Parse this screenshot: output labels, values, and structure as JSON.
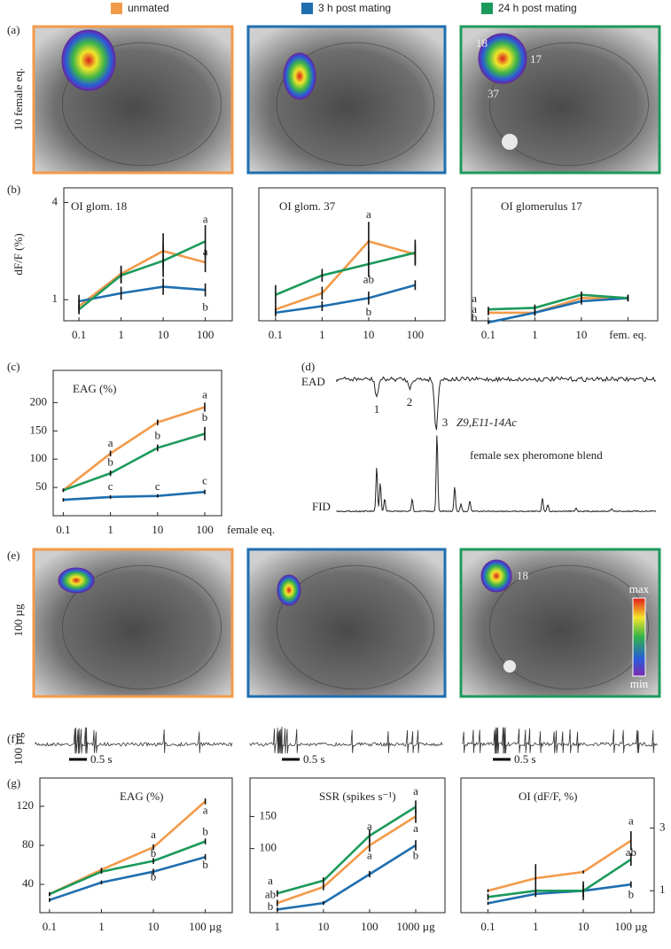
{
  "legend": [
    {
      "name": "unmated",
      "color": "#f39a4a"
    },
    {
      "name": "3 h post mating",
      "color": "#1f6fb0"
    },
    {
      "name": "24 h post mating",
      "color": "#1c9a5c"
    }
  ],
  "row_a": {
    "panel": "(a)",
    "ylabel": "10 female eq.",
    "image_labels": [
      "18",
      "17",
      "37"
    ]
  },
  "chart_data": [
    {
      "type": "line",
      "panel": "(b)",
      "title": "OI glom. 18",
      "ylabel": "dF/F (%)",
      "categories": [
        "0.1",
        "1",
        "10",
        "100"
      ],
      "ylim": [
        0.35,
        4.45
      ],
      "yticks": [
        1,
        4
      ],
      "series": [
        {
          "color": "#f39a4a",
          "values": [
            0.8,
            1.8,
            2.5,
            2.15
          ],
          "errors": [
            0.2,
            0.25,
            0.55,
            0.3
          ]
        },
        {
          "color": "#1f6fb0",
          "values": [
            0.95,
            1.2,
            1.4,
            1.3
          ],
          "errors": [
            0.2,
            0.2,
            0.25,
            0.2
          ]
        },
        {
          "color": "#1c9a5c",
          "values": [
            0.7,
            1.75,
            2.2,
            2.8
          ],
          "errors": [
            0.15,
            0.25,
            0.5,
            0.5
          ]
        }
      ],
      "annotations": [
        {
          "text": "a",
          "x": 3,
          "y": 3.45
        },
        {
          "text": "a",
          "x": 3,
          "y": 2.45
        },
        {
          "text": "b",
          "x": 3,
          "y": 0.75
        }
      ]
    },
    {
      "type": "line",
      "title": "OI glom. 37",
      "categories": [
        "0.1",
        "1",
        "10",
        "100"
      ],
      "ylim": [
        0.35,
        4.45
      ],
      "series": [
        {
          "color": "#f39a4a",
          "values": [
            0.7,
            1.2,
            2.8,
            2.4
          ],
          "errors": [
            0.15,
            0.2,
            0.6,
            0.3
          ]
        },
        {
          "color": "#1f6fb0",
          "values": [
            0.6,
            0.8,
            1.05,
            1.45
          ],
          "errors": [
            0.12,
            0.15,
            0.2,
            0.15
          ]
        },
        {
          "color": "#1c9a5c",
          "values": [
            1.15,
            1.75,
            2.1,
            2.45
          ],
          "errors": [
            0.3,
            0.2,
            0.4,
            0.4
          ]
        }
      ],
      "annotations": [
        {
          "text": "a",
          "x": 2,
          "y": 3.6
        },
        {
          "text": "ab",
          "x": 2,
          "y": 1.6
        },
        {
          "text": "b",
          "x": 2,
          "y": 0.6
        }
      ]
    },
    {
      "type": "line",
      "title": "OI glomerulus 17",
      "categories": [
        "0.1",
        "1",
        "10",
        "fem. eq."
      ],
      "ylim": [
        0.35,
        4.45
      ],
      "series": [
        {
          "color": "#f39a4a",
          "values": [
            0.6,
            0.6,
            1.05,
            1.05
          ],
          "errors": [
            0.08,
            0.1,
            0.1,
            0.1
          ]
        },
        {
          "color": "#1f6fb0",
          "values": [
            0.3,
            0.6,
            0.95,
            1.05
          ],
          "errors": [
            0.05,
            0.1,
            0.1,
            0.1
          ]
        },
        {
          "color": "#1c9a5c",
          "values": [
            0.7,
            0.75,
            1.15,
            1.05
          ],
          "errors": [
            0.08,
            0.1,
            0.1,
            0.1
          ]
        }
      ],
      "annotations": [
        {
          "text": "a",
          "x": -0.3,
          "y": 1.0
        },
        {
          "text": "a",
          "x": -0.3,
          "y": 0.68
        },
        {
          "text": "b",
          "x": -0.3,
          "y": 0.42
        }
      ]
    },
    {
      "type": "line",
      "panel": "(c)",
      "title": "EAG (%)",
      "xlabel": "female eq.",
      "categories": [
        "0.1",
        "1",
        "10",
        "100"
      ],
      "ylim": [
        0,
        257
      ],
      "yticks": [
        50,
        100,
        150,
        200
      ],
      "series": [
        {
          "color": "#f39a4a",
          "values": [
            45,
            110,
            165,
            192
          ],
          "errors": [
            3,
            5,
            5,
            8
          ]
        },
        {
          "color": "#1f6fb0",
          "values": [
            28,
            33,
            35,
            42
          ],
          "errors": [
            3,
            3,
            3,
            4
          ]
        },
        {
          "color": "#1c9a5c",
          "values": [
            45,
            75,
            120,
            145
          ],
          "errors": [
            3,
            5,
            6,
            12
          ]
        }
      ],
      "annotations": [
        {
          "text": "a",
          "x": 1,
          "y": 127
        },
        {
          "text": "b",
          "x": 1,
          "y": 93
        },
        {
          "text": "c",
          "x": 1,
          "y": 50
        },
        {
          "text": "b",
          "x": 2,
          "y": 140
        },
        {
          "text": "c",
          "x": 2,
          "y": 50
        },
        {
          "text": "a",
          "x": 3,
          "y": 212
        },
        {
          "text": "b",
          "x": 3,
          "y": 172
        },
        {
          "text": "c",
          "x": 3,
          "y": 60
        }
      ]
    },
    {
      "type": "line",
      "panel": "(g)",
      "title": "EAG (%)",
      "categories": [
        "0.1",
        "1",
        "10",
        "100 µg"
      ],
      "ylim": [
        11,
        149
      ],
      "yticks": [
        40,
        80,
        120
      ],
      "series": [
        {
          "color": "#f39a4a",
          "values": [
            30,
            55,
            78,
            125
          ],
          "errors": [
            2,
            2,
            3,
            3
          ]
        },
        {
          "color": "#1f6fb0",
          "values": [
            24,
            42,
            53,
            68
          ],
          "errors": [
            2,
            2,
            3,
            3
          ]
        },
        {
          "color": "#1c9a5c",
          "values": [
            30,
            53,
            64,
            84
          ],
          "errors": [
            2,
            2,
            3,
            3
          ]
        }
      ],
      "annotations": [
        {
          "text": "a",
          "x": 2,
          "y": 90
        },
        {
          "text": "b",
          "x": 2,
          "y": 71
        },
        {
          "text": "b",
          "x": 2,
          "y": 47
        },
        {
          "text": "a",
          "x": 3,
          "y": 115
        },
        {
          "text": "b",
          "x": 3,
          "y": 93
        },
        {
          "text": "b",
          "x": 3,
          "y": 59
        }
      ]
    },
    {
      "type": "line",
      "title": "SSR (spikes s⁻¹)",
      "categories": [
        "1",
        "10",
        "100",
        "1000 µg"
      ],
      "ylim": [
        0,
        210
      ],
      "yticks": [
        100,
        150
      ],
      "series": [
        {
          "color": "#f39a4a",
          "values": [
            15,
            40,
            105,
            150
          ],
          "errors": [
            5,
            5,
            10,
            10
          ]
        },
        {
          "color": "#1f6fb0",
          "values": [
            5,
            15,
            60,
            105
          ],
          "errors": [
            3,
            3,
            5,
            8
          ]
        },
        {
          "color": "#1c9a5c",
          "values": [
            30,
            50,
            120,
            165
          ],
          "errors": [
            5,
            5,
            10,
            10
          ]
        }
      ],
      "annotations": [
        {
          "text": "a",
          "x": -0.15,
          "y": 48
        },
        {
          "text": "ab",
          "x": -0.15,
          "y": 27
        },
        {
          "text": "b",
          "x": -0.15,
          "y": 8
        },
        {
          "text": "a",
          "x": 2,
          "y": 133
        },
        {
          "text": "a",
          "x": 2,
          "y": 88
        },
        {
          "text": "a",
          "x": 3,
          "y": 188
        },
        {
          "text": "a",
          "x": 3,
          "y": 130
        },
        {
          "text": "b",
          "x": 3,
          "y": 88
        }
      ]
    },
    {
      "type": "line",
      "title": "OI (dF/F, %)",
      "y_axis": "right",
      "categories": [
        "0.1",
        "1",
        "10",
        "100 µg"
      ],
      "ylim": [
        0.3,
        4.6
      ],
      "yticks": [
        1,
        3
      ],
      "series": [
        {
          "color": "#f39a4a",
          "values": [
            1.0,
            1.4,
            1.6,
            2.6
          ],
          "errors": [
            0.05,
            0.45,
            0.05,
            0.3
          ]
        },
        {
          "color": "#1f6fb0",
          "values": [
            0.6,
            0.9,
            1.0,
            1.2
          ],
          "errors": [
            0.05,
            0.1,
            0.2,
            0.1
          ]
        },
        {
          "color": "#1c9a5c",
          "values": [
            0.8,
            1.0,
            1.0,
            2.0
          ],
          "errors": [
            0.1,
            0.1,
            0.3,
            0.2
          ]
        }
      ],
      "annotations": [
        {
          "text": "a",
          "x": 3,
          "y": 3.2
        },
        {
          "text": "ab",
          "x": 3,
          "y": 2.2
        },
        {
          "text": "b",
          "x": 3,
          "y": 0.85
        }
      ]
    }
  ],
  "panel_d": {
    "panel": "(d)",
    "ead": "EAD",
    "fid": "FID",
    "peaks": [
      "1",
      "2",
      "3"
    ],
    "compound": "Z9,E11-14Ac",
    "blend": "female sex pheromone blend"
  },
  "row_e": {
    "panel": "(e)",
    "ylabel": "100 µg",
    "image_labels": [
      "18"
    ],
    "colorbar": [
      "max",
      "min"
    ]
  },
  "row_f": {
    "panel": "(f)",
    "ylabel": "100 µg",
    "scale_bars": [
      "0.5 s",
      "0.5 s",
      "0.5 s"
    ]
  }
}
